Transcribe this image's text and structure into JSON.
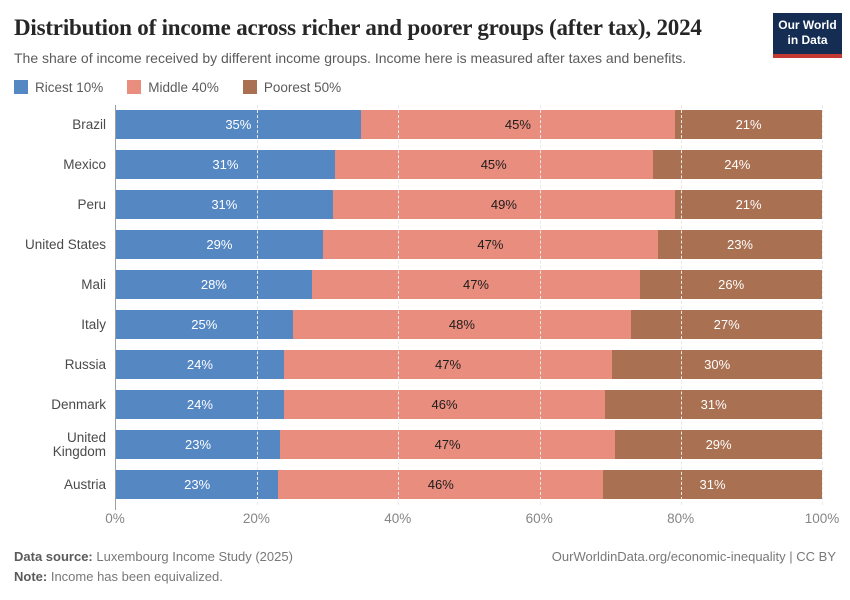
{
  "header": {
    "title": "Distribution of income across richer and poorer groups (after tax), 2024",
    "subtitle": "The share of income received by different income groups. Income here is measured after taxes and benefits.",
    "logo": {
      "line1": "Our World",
      "line2": "in Data"
    }
  },
  "legend": [
    {
      "label": "Ricest 10%",
      "color": "#5587c2"
    },
    {
      "label": "Middle 40%",
      "color": "#e98d7e"
    },
    {
      "label": "Poorest 50%",
      "color": "#a97052"
    }
  ],
  "chart_data": {
    "type": "bar",
    "stacked": true,
    "orientation": "horizontal",
    "title": "Distribution of income across richer and poorer groups (after tax), 2024",
    "categories": [
      "Brazil",
      "Mexico",
      "Peru",
      "United States",
      "Mali",
      "Italy",
      "Russia",
      "Denmark",
      "United Kingdom",
      "Austria"
    ],
    "series": [
      {
        "name": "Ricest 10%",
        "color": "#5587c2",
        "label_color": "#ffffff",
        "values": [
          35,
          31,
          31,
          29,
          28,
          25,
          24,
          24,
          23,
          23
        ]
      },
      {
        "name": "Middle 40%",
        "color": "#e98d7e",
        "label_color": "#1d1d1d",
        "values": [
          45,
          45,
          49,
          47,
          47,
          48,
          47,
          46,
          47,
          46
        ]
      },
      {
        "name": "Poorest 50%",
        "color": "#a97052",
        "label_color": "#ffffff",
        "values": [
          21,
          24,
          21,
          23,
          26,
          27,
          30,
          31,
          29,
          31
        ]
      }
    ],
    "value_suffix": "%",
    "xlim": [
      0,
      100
    ],
    "x_ticks": [
      "0%",
      "20%",
      "40%",
      "60%",
      "80%",
      "100%"
    ],
    "gridline_positions": [
      20,
      40,
      60,
      80,
      100
    ],
    "grid": true,
    "legend_position": "top",
    "axis_color": "#9e9e9e"
  },
  "footer": {
    "source_label": "Data source:",
    "source_text": " Luxembourg Income Study (2025)",
    "note_label": "Note:",
    "note_text": " Income has been equivalized.",
    "link_text": "OurWorldinData.org/economic-inequality | CC BY"
  }
}
